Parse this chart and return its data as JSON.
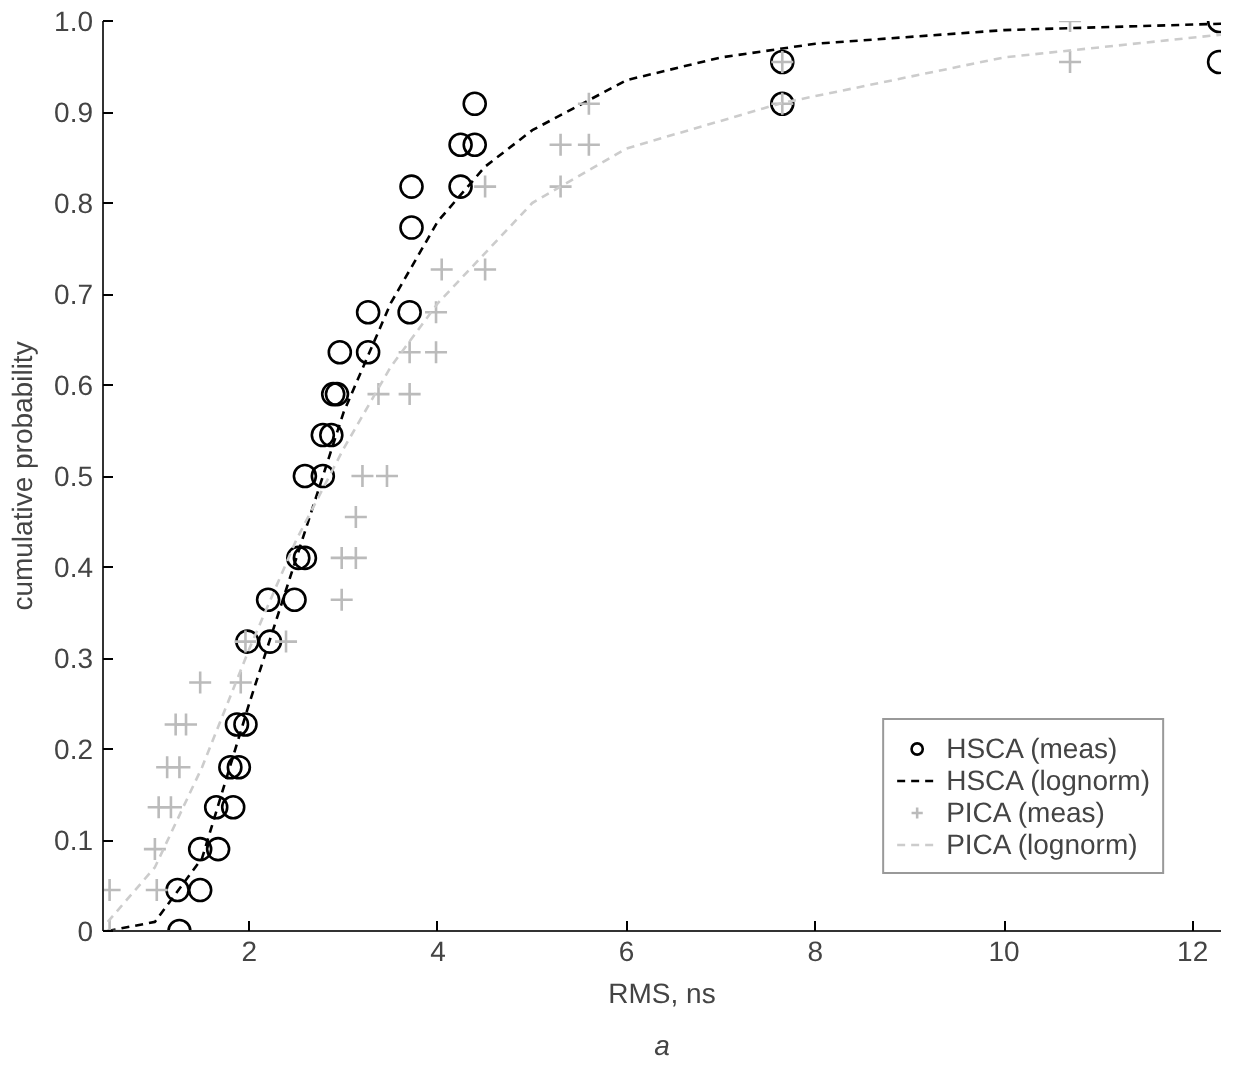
{
  "chart_data": {
    "type": "scatter",
    "xlabel": "RMS, ns",
    "ylabel": "cumulative probability",
    "annotations": [
      "a"
    ],
    "xlim": [
      0.45,
      12.3
    ],
    "ylim": [
      0,
      1.0
    ],
    "xticks": [
      2,
      4,
      6,
      8,
      10,
      12
    ],
    "yticks": [
      0,
      0.1,
      0.2,
      0.3,
      0.4,
      0.5,
      0.6,
      0.7,
      0.8,
      0.9,
      {
        "value": 1.0,
        "label": "1.0"
      }
    ],
    "grid": false,
    "legend": "bottom right",
    "series": [
      {
        "name": "HSCA (meas)",
        "marker": "circle",
        "color": "#000000",
        "x": [
          1.26,
          1.24,
          1.48,
          1.48,
          1.67,
          1.65,
          1.83,
          1.8,
          1.89,
          1.87,
          1.96,
          1.98,
          2.22,
          2.2,
          2.48,
          2.52,
          2.59,
          2.59,
          2.78,
          2.78,
          2.87,
          2.89,
          2.93,
          2.96,
          3.26,
          3.26,
          3.7,
          3.72,
          3.72,
          4.24,
          4.24,
          4.39,
          4.39,
          7.65,
          7.65,
          12.28,
          12.28
        ],
        "values": [
          0,
          0.045,
          0.045,
          0.09,
          0.09,
          0.136,
          0.136,
          0.18,
          0.18,
          0.227,
          0.227,
          0.318,
          0.318,
          0.364,
          0.364,
          0.41,
          0.41,
          0.5,
          0.5,
          0.545,
          0.545,
          0.59,
          0.59,
          0.636,
          0.636,
          0.68,
          0.68,
          0.773,
          0.818,
          0.818,
          0.864,
          0.864,
          0.909,
          0.909,
          0.955,
          0.955,
          1.0
        ]
      },
      {
        "name": "HSCA (lognorm)",
        "type": "line",
        "line_style": "dashed",
        "color": "#000000",
        "x": [
          0.5,
          1,
          1.5,
          2,
          2.5,
          3,
          3.5,
          4,
          4.5,
          5,
          6,
          7,
          8,
          10,
          12.3
        ],
        "values": [
          0,
          0.01,
          0.08,
          0.25,
          0.41,
          0.57,
          0.69,
          0.78,
          0.84,
          0.88,
          0.935,
          0.96,
          0.975,
          0.99,
          0.997
        ]
      },
      {
        "name": "PICA (meas)",
        "marker": "cross",
        "color": "#bbbbbb",
        "x": [
          0.52,
          0.52,
          1.02,
          1.0,
          1.04,
          1.17,
          1.13,
          1.26,
          1.22,
          1.33,
          1.48,
          1.91,
          1.96,
          2.39,
          2.98,
          2.98,
          3.13,
          3.13,
          3.2,
          3.46,
          3.37,
          3.7,
          3.7,
          3.98,
          3.98,
          4.04,
          4.5,
          4.5,
          5.3,
          5.3,
          5.6,
          5.6,
          7.65,
          7.65,
          10.7,
          10.7
        ],
        "values": [
          0,
          0.045,
          0.045,
          0.09,
          0.136,
          0.136,
          0.18,
          0.18,
          0.227,
          0.227,
          0.273,
          0.273,
          0.318,
          0.318,
          0.364,
          0.41,
          0.41,
          0.455,
          0.5,
          0.5,
          0.59,
          0.59,
          0.636,
          0.636,
          0.68,
          0.727,
          0.727,
          0.818,
          0.818,
          0.864,
          0.864,
          0.909,
          0.909,
          0.955,
          0.955,
          1.0
        ]
      },
      {
        "name": "PICA (lognorm)",
        "type": "line",
        "line_style": "dashed",
        "color": "#cccccc",
        "x": [
          0.5,
          1,
          1.5,
          2,
          2.5,
          3,
          3.5,
          4,
          5,
          6,
          7.65,
          10,
          12.3
        ],
        "values": [
          0.01,
          0.07,
          0.18,
          0.31,
          0.43,
          0.53,
          0.62,
          0.69,
          0.8,
          0.86,
          0.91,
          0.96,
          0.985
        ]
      }
    ]
  }
}
